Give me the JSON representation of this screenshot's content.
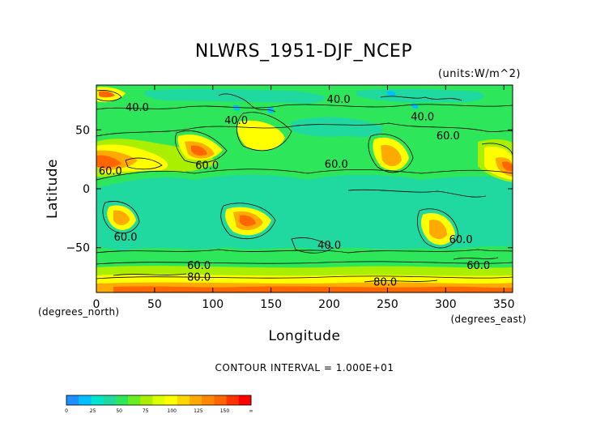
{
  "chart_data": {
    "type": "heatmap",
    "title": "NLWRS_1951-DJF_NCEP",
    "units": "(units:W/m^2)",
    "xlabel": "Longitude",
    "ylabel": "Latitude",
    "x_unit_label": "(degrees_east)",
    "y_unit_label": "(degrees_north)",
    "xlim": [
      0,
      357.5
    ],
    "ylim": [
      -88,
      88
    ],
    "x_ticks": [
      0,
      50,
      100,
      150,
      200,
      250,
      300,
      350
    ],
    "y_ticks": [
      50,
      0,
      -50
    ],
    "contour_interval_text": "CONTOUR INTERVAL = 1.000E+01",
    "contour_labels": [
      {
        "text": "40.0",
        "lon": 25,
        "lat": 66
      },
      {
        "text": "40.0",
        "lon": 110,
        "lat": 55
      },
      {
        "text": "40.0",
        "lon": 198,
        "lat": 73
      },
      {
        "text": "40.0",
        "lon": 270,
        "lat": 58
      },
      {
        "text": "60.0",
        "lon": 292,
        "lat": 42
      },
      {
        "text": "60.0",
        "lon": 2,
        "lat": 12
      },
      {
        "text": "60.0",
        "lon": 85,
        "lat": 17
      },
      {
        "text": "60.0",
        "lon": 196,
        "lat": 18
      },
      {
        "text": "60.0",
        "lon": 15,
        "lat": -44
      },
      {
        "text": "40.0",
        "lon": 190,
        "lat": -51
      },
      {
        "text": "60.0",
        "lon": 303,
        "lat": -46
      },
      {
        "text": "60.0",
        "lon": 78,
        "lat": -68
      },
      {
        "text": "60.0",
        "lon": 318,
        "lat": -68
      },
      {
        "text": "80.0",
        "lon": 78,
        "lat": -78
      },
      {
        "text": "80.0",
        "lon": 238,
        "lat": -82
      }
    ],
    "colorbar": {
      "levels": [
        "0",
        "25",
        "50",
        "75",
        "100",
        "125",
        "150",
        "∞"
      ],
      "colors": [
        "#1e90ff",
        "#00bfff",
        "#00e5cc",
        "#20d9a0",
        "#2ee65a",
        "#66ee22",
        "#aaee00",
        "#ddff00",
        "#ffff00",
        "#ffd700",
        "#ffaa00",
        "#ff8800",
        "#ff6600",
        "#ff3300",
        "#ff0000"
      ]
    }
  }
}
